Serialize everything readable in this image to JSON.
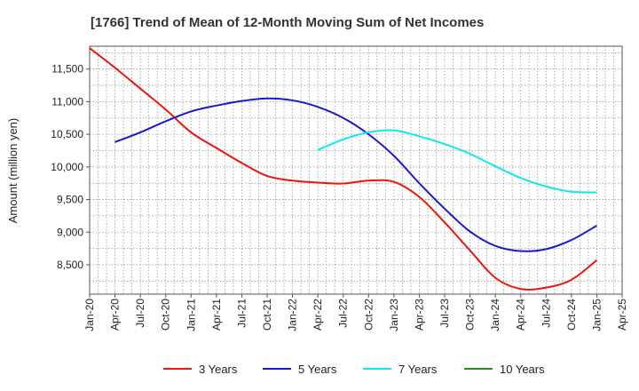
{
  "chart_data": {
    "type": "line",
    "title": "[1766]  Trend of Mean of 12-Month Moving Sum of Net Incomes",
    "ylabel": "Amount (million yen)",
    "xlabel": "",
    "ylim": [
      8050,
      11850
    ],
    "yticks": [
      "8,500",
      "9,000",
      "9,500",
      "10,000",
      "10,500",
      "11,000",
      "11,500"
    ],
    "ytick_values": [
      8500,
      9000,
      9500,
      10000,
      10500,
      11000,
      11500
    ],
    "xticks": [
      "Jan-20",
      "Apr-20",
      "Jul-20",
      "Oct-20",
      "Jan-21",
      "Apr-21",
      "Jul-21",
      "Oct-21",
      "Jan-22",
      "Apr-22",
      "Jul-22",
      "Oct-22",
      "Jan-23",
      "Apr-23",
      "Jul-23",
      "Oct-23",
      "Jan-24",
      "Apr-24",
      "Jul-24",
      "Oct-24",
      "Jan-25",
      "Apr-25"
    ],
    "grid": true,
    "legend_position": "bottom",
    "series": [
      {
        "name": "3 Years",
        "color": "#e8160c",
        "points": [
          [
            "Jan-20",
            11820
          ],
          [
            "Apr-20",
            11520
          ],
          [
            "Jul-20",
            11200
          ],
          [
            "Oct-20",
            10880
          ],
          [
            "Jan-21",
            10530
          ],
          [
            "Apr-21",
            10290
          ],
          [
            "Jul-21",
            10060
          ],
          [
            "Oct-21",
            9860
          ],
          [
            "Jan-22",
            9790
          ],
          [
            "Apr-22",
            9760
          ],
          [
            "Jul-22",
            9745
          ],
          [
            "Oct-22",
            9790
          ],
          [
            "Jan-23",
            9770
          ],
          [
            "Apr-23",
            9540
          ],
          [
            "Jul-23",
            9150
          ],
          [
            "Oct-23",
            8720
          ],
          [
            "Jan-24",
            8300
          ],
          [
            "Apr-24",
            8130
          ],
          [
            "Jul-24",
            8150
          ],
          [
            "Oct-24",
            8270
          ],
          [
            "Jan-25",
            8570
          ]
        ]
      },
      {
        "name": "5 Years",
        "color": "#1a1acd",
        "points": [
          [
            "Apr-20",
            10380
          ],
          [
            "Jul-20",
            10530
          ],
          [
            "Oct-20",
            10700
          ],
          [
            "Jan-21",
            10850
          ],
          [
            "Apr-21",
            10940
          ],
          [
            "Jul-21",
            11010
          ],
          [
            "Oct-21",
            11050
          ],
          [
            "Jan-22",
            11020
          ],
          [
            "Apr-22",
            10920
          ],
          [
            "Jul-22",
            10750
          ],
          [
            "Oct-22",
            10500
          ],
          [
            "Jan-23",
            10170
          ],
          [
            "Apr-23",
            9750
          ],
          [
            "Jul-23",
            9360
          ],
          [
            "Oct-23",
            9010
          ],
          [
            "Jan-24",
            8790
          ],
          [
            "Apr-24",
            8710
          ],
          [
            "Jul-24",
            8740
          ],
          [
            "Oct-24",
            8880
          ],
          [
            "Jan-25",
            9100
          ]
        ]
      },
      {
        "name": "7 Years",
        "color": "#10e8f0",
        "points": [
          [
            "Apr-22",
            10260
          ],
          [
            "Jul-22",
            10420
          ],
          [
            "Oct-22",
            10530
          ],
          [
            "Jan-23",
            10560
          ],
          [
            "Apr-23",
            10470
          ],
          [
            "Jul-23",
            10350
          ],
          [
            "Oct-23",
            10200
          ],
          [
            "Jan-24",
            10010
          ],
          [
            "Apr-24",
            9830
          ],
          [
            "Jul-24",
            9700
          ],
          [
            "Oct-24",
            9620
          ],
          [
            "Jan-25",
            9610
          ]
        ]
      },
      {
        "name": "10 Years",
        "color": "#2a8a22",
        "points": []
      }
    ]
  }
}
